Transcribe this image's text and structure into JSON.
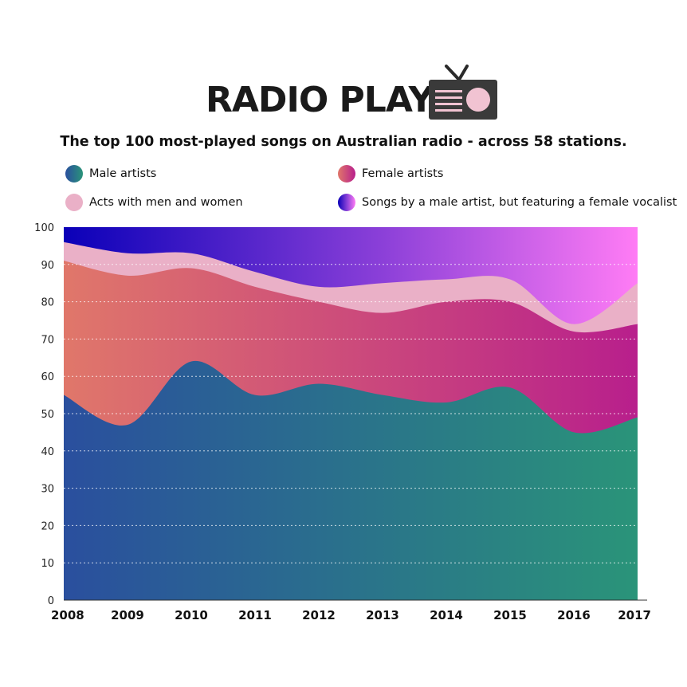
{
  "header": {
    "title": "RADIO PLAY",
    "subtitle": "The top 100 most-played songs on Australian radio - across 58 stations."
  },
  "icons": {
    "title_icon": "retro-tv-radio-icon"
  },
  "colors": {
    "male_start": "#2a4f9e",
    "male_end": "#2a9479",
    "female_start": "#e0776a",
    "female_end": "#b81f8c",
    "mixed": "#eab0c7",
    "featuring_start": "#0a00b8",
    "featuring_end": "#ff7cf5",
    "grid": "#ffffff",
    "axis": "#333333"
  },
  "chart_data": {
    "type": "area",
    "stacked": true,
    "x": [
      "2008",
      "2009",
      "2010",
      "2011",
      "2012",
      "2013",
      "2014",
      "2015",
      "2016",
      "2017"
    ],
    "ylim": [
      0,
      100
    ],
    "yticks": [
      "0",
      "10",
      "20",
      "30",
      "40",
      "50",
      "60",
      "70",
      "80",
      "90",
      "100"
    ],
    "grid": "horizontal dotted",
    "legend_position": "top",
    "series": [
      {
        "name": "Male artists",
        "values": [
          55,
          47,
          64,
          55,
          58,
          55,
          53,
          57,
          45,
          49
        ]
      },
      {
        "name": "Female artists",
        "values": [
          36,
          40,
          25,
          29,
          22,
          22,
          27,
          23,
          27,
          25
        ]
      },
      {
        "name": "Acts with men and women",
        "values": [
          5,
          6,
          4,
          4,
          4,
          8,
          6,
          6,
          2,
          11
        ]
      },
      {
        "name": "Songs by a male artist, but featuring a female vocalist",
        "values": [
          4,
          7,
          7,
          12,
          16,
          15,
          14,
          14,
          26,
          15
        ]
      }
    ]
  }
}
